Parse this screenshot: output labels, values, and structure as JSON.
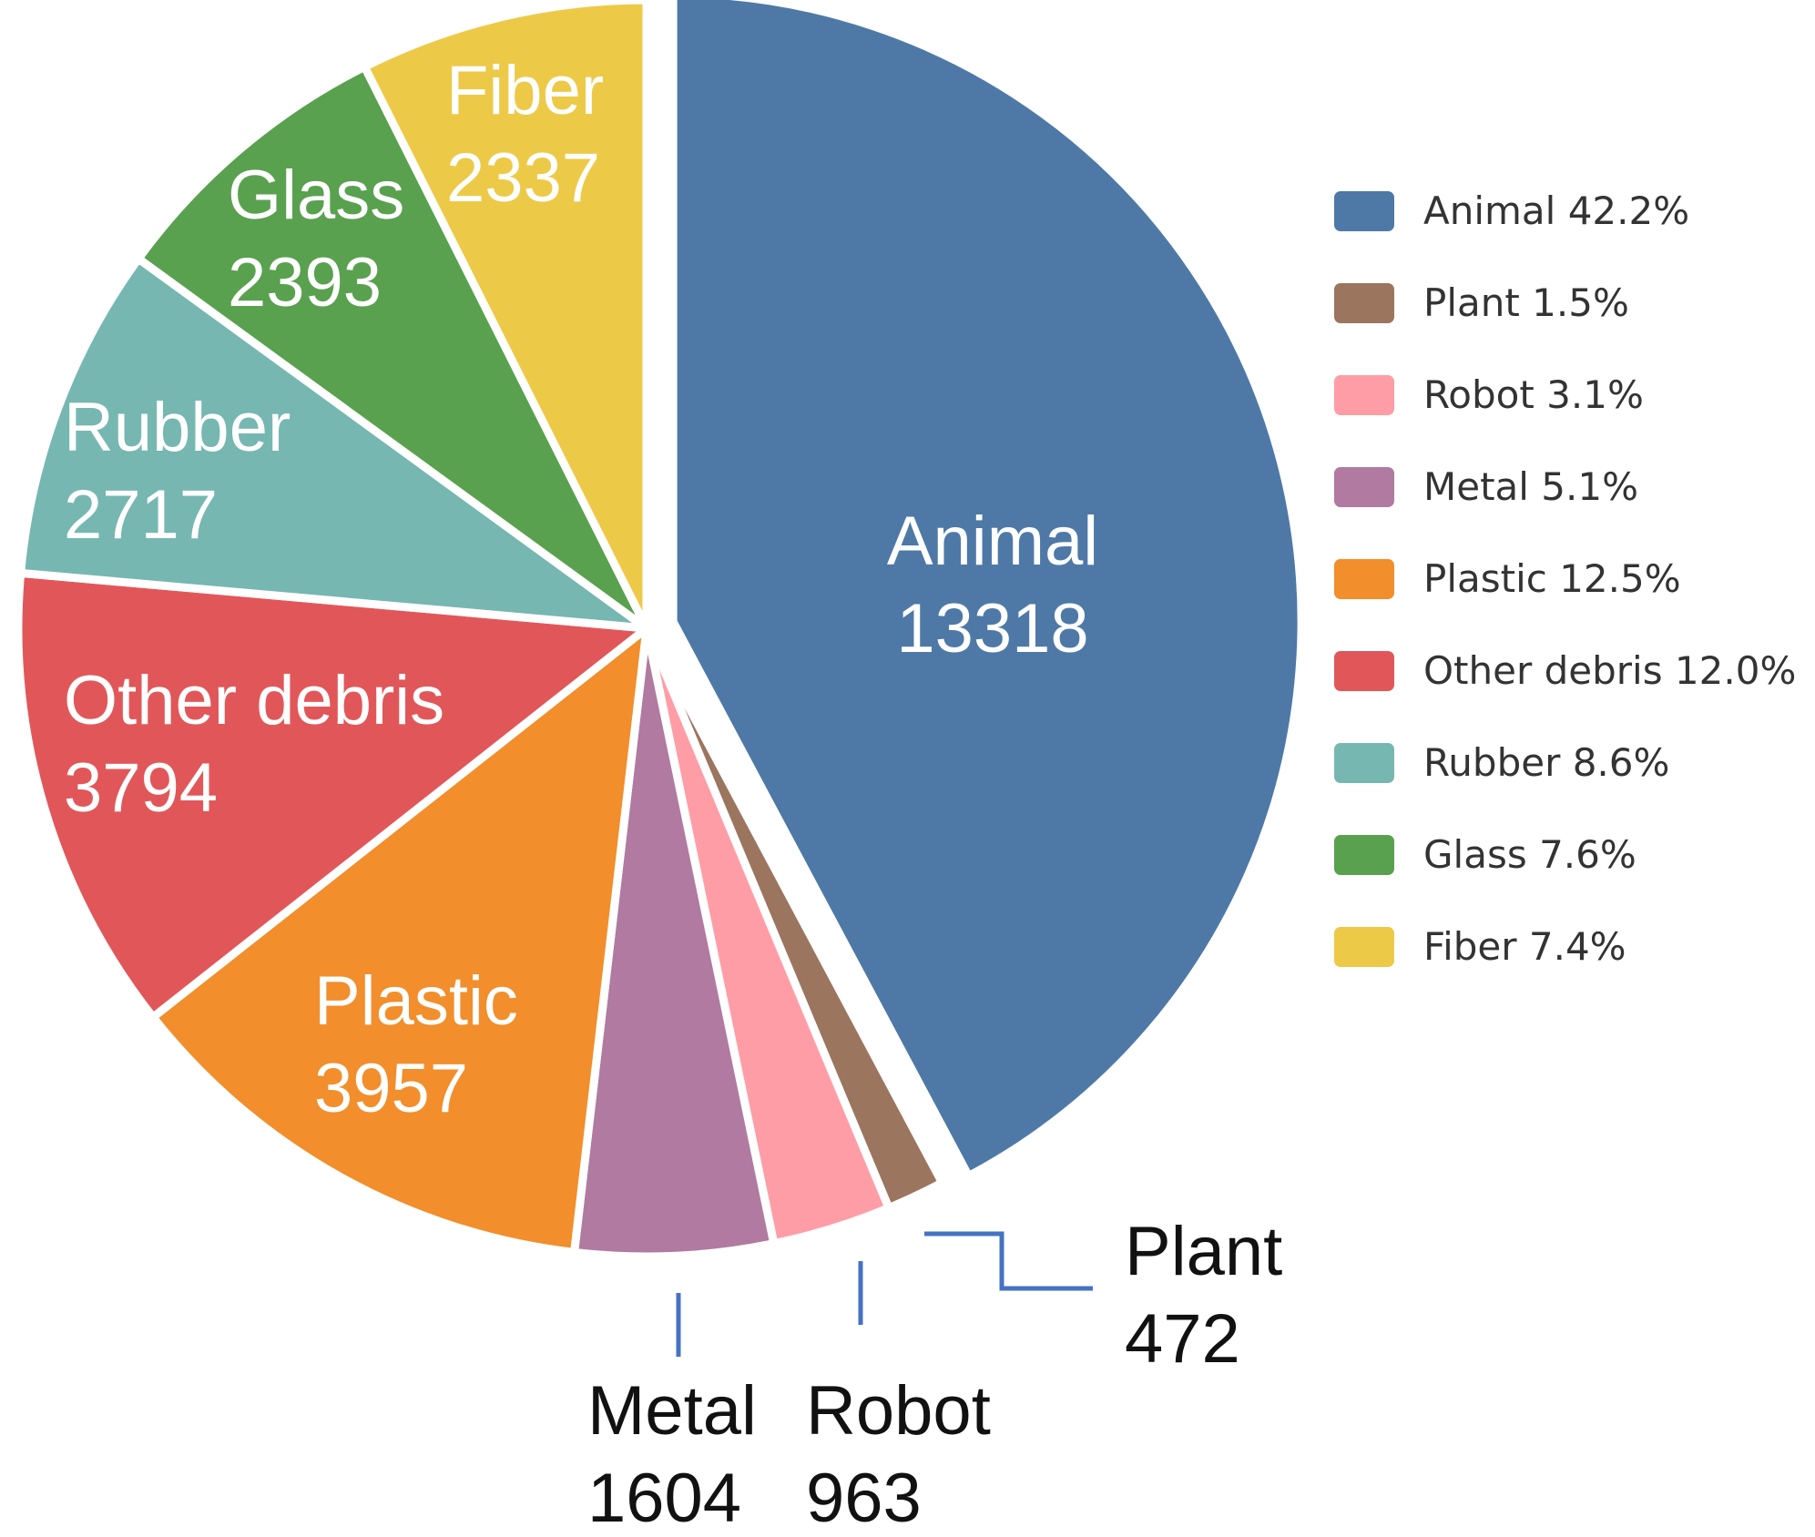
{
  "chart_data": {
    "type": "pie",
    "slices": [
      {
        "name": "Animal",
        "value": 13318,
        "percent_label": "42.2%",
        "color": "#4e79a7"
      },
      {
        "name": "Plant",
        "value": 472,
        "percent_label": "1.5%",
        "color": "#9c755f"
      },
      {
        "name": "Robot",
        "value": 963,
        "percent_label": "3.1%",
        "color": "#ff9da7"
      },
      {
        "name": "Metal",
        "value": 1604,
        "percent_label": "5.1%",
        "color": "#b07aa1"
      },
      {
        "name": "Plastic",
        "value": 3957,
        "percent_label": "12.5%",
        "color": "#f28e2b"
      },
      {
        "name": "Other debris",
        "value": 3794,
        "percent_label": "12.0%",
        "color": "#e15759"
      },
      {
        "name": "Rubber",
        "value": 2717,
        "percent_label": "8.6%",
        "color": "#76b7b2"
      },
      {
        "name": "Glass",
        "value": 2393,
        "percent_label": "7.6%",
        "color": "#59a14f"
      },
      {
        "name": "Fiber",
        "value": 2337,
        "percent_label": "7.4%",
        "color": "#edc948"
      }
    ],
    "legend_position": "right",
    "leader_line_color": "#4472c4"
  }
}
